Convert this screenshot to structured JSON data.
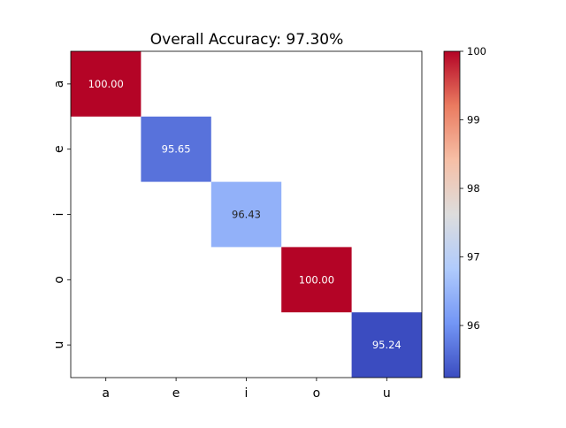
{
  "chart_data": {
    "type": "heatmap",
    "title": "Overall Accuracy: 97.30%",
    "xlabel": "",
    "ylabel": "",
    "x_categories": [
      "a",
      "e",
      "i",
      "o",
      "u"
    ],
    "y_categories": [
      "a",
      "e",
      "i",
      "o",
      "u"
    ],
    "cells": [
      {
        "row": 0,
        "col": 0,
        "value": 100.0,
        "label": "100.00"
      },
      {
        "row": 1,
        "col": 1,
        "value": 95.65,
        "label": "95.65"
      },
      {
        "row": 2,
        "col": 2,
        "value": 96.43,
        "label": "96.43"
      },
      {
        "row": 3,
        "col": 3,
        "value": 100.0,
        "label": "100.00"
      },
      {
        "row": 4,
        "col": 4,
        "value": 95.24,
        "label": "95.24"
      }
    ],
    "empty_cells_blank": true,
    "colormap": "coolwarm",
    "colormap_stops": [
      "#3b4cc0",
      "#7396f5",
      "#b0cbfc",
      "#dddddd",
      "#f6bfa6",
      "#ea7b60",
      "#b40426"
    ],
    "value_range": [
      95.24,
      100
    ],
    "colorbar": {
      "ticks": [
        "96",
        "97",
        "98",
        "99",
        "100"
      ],
      "position": "right"
    },
    "grid": false
  }
}
